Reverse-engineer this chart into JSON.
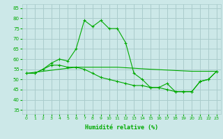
{
  "xlabel": "Humidité relative (%)",
  "background_color": "#cce8e8",
  "grid_color": "#aacccc",
  "line_color": "#00aa00",
  "xlim": [
    -0.5,
    23.5
  ],
  "ylim": [
    33,
    87
  ],
  "yticks": [
    35,
    40,
    45,
    50,
    55,
    60,
    65,
    70,
    75,
    80,
    85
  ],
  "xticks": [
    0,
    1,
    2,
    3,
    4,
    5,
    6,
    7,
    8,
    9,
    10,
    11,
    12,
    13,
    14,
    15,
    16,
    17,
    18,
    19,
    20,
    21,
    22,
    23
  ],
  "line1_x": [
    0,
    1,
    2,
    3,
    4,
    5,
    6,
    7,
    8,
    9,
    10,
    11,
    12,
    13,
    14,
    15,
    16,
    17,
    18,
    19,
    20,
    21,
    22,
    23
  ],
  "line1_y": [
    53,
    53,
    55,
    58,
    60,
    59,
    65,
    79,
    76,
    79,
    75,
    75,
    68,
    53,
    50,
    46,
    46,
    48,
    44,
    44,
    44,
    49,
    50,
    54
  ],
  "line2_x": [
    0,
    1,
    2,
    3,
    4,
    5,
    6,
    7,
    8,
    9,
    10,
    11,
    12,
    13,
    14,
    15,
    16,
    17,
    18,
    19,
    20,
    21,
    22,
    23
  ],
  "line2_y": [
    53,
    53,
    55,
    57,
    57,
    56,
    56,
    55,
    53,
    51,
    50,
    49,
    48,
    47,
    47,
    46,
    46,
    45,
    44,
    44,
    44,
    49,
    50,
    54
  ],
  "line3_x": [
    0,
    6,
    11,
    15,
    20,
    23
  ],
  "line3_y": [
    53,
    56,
    56,
    55,
    54,
    54
  ]
}
